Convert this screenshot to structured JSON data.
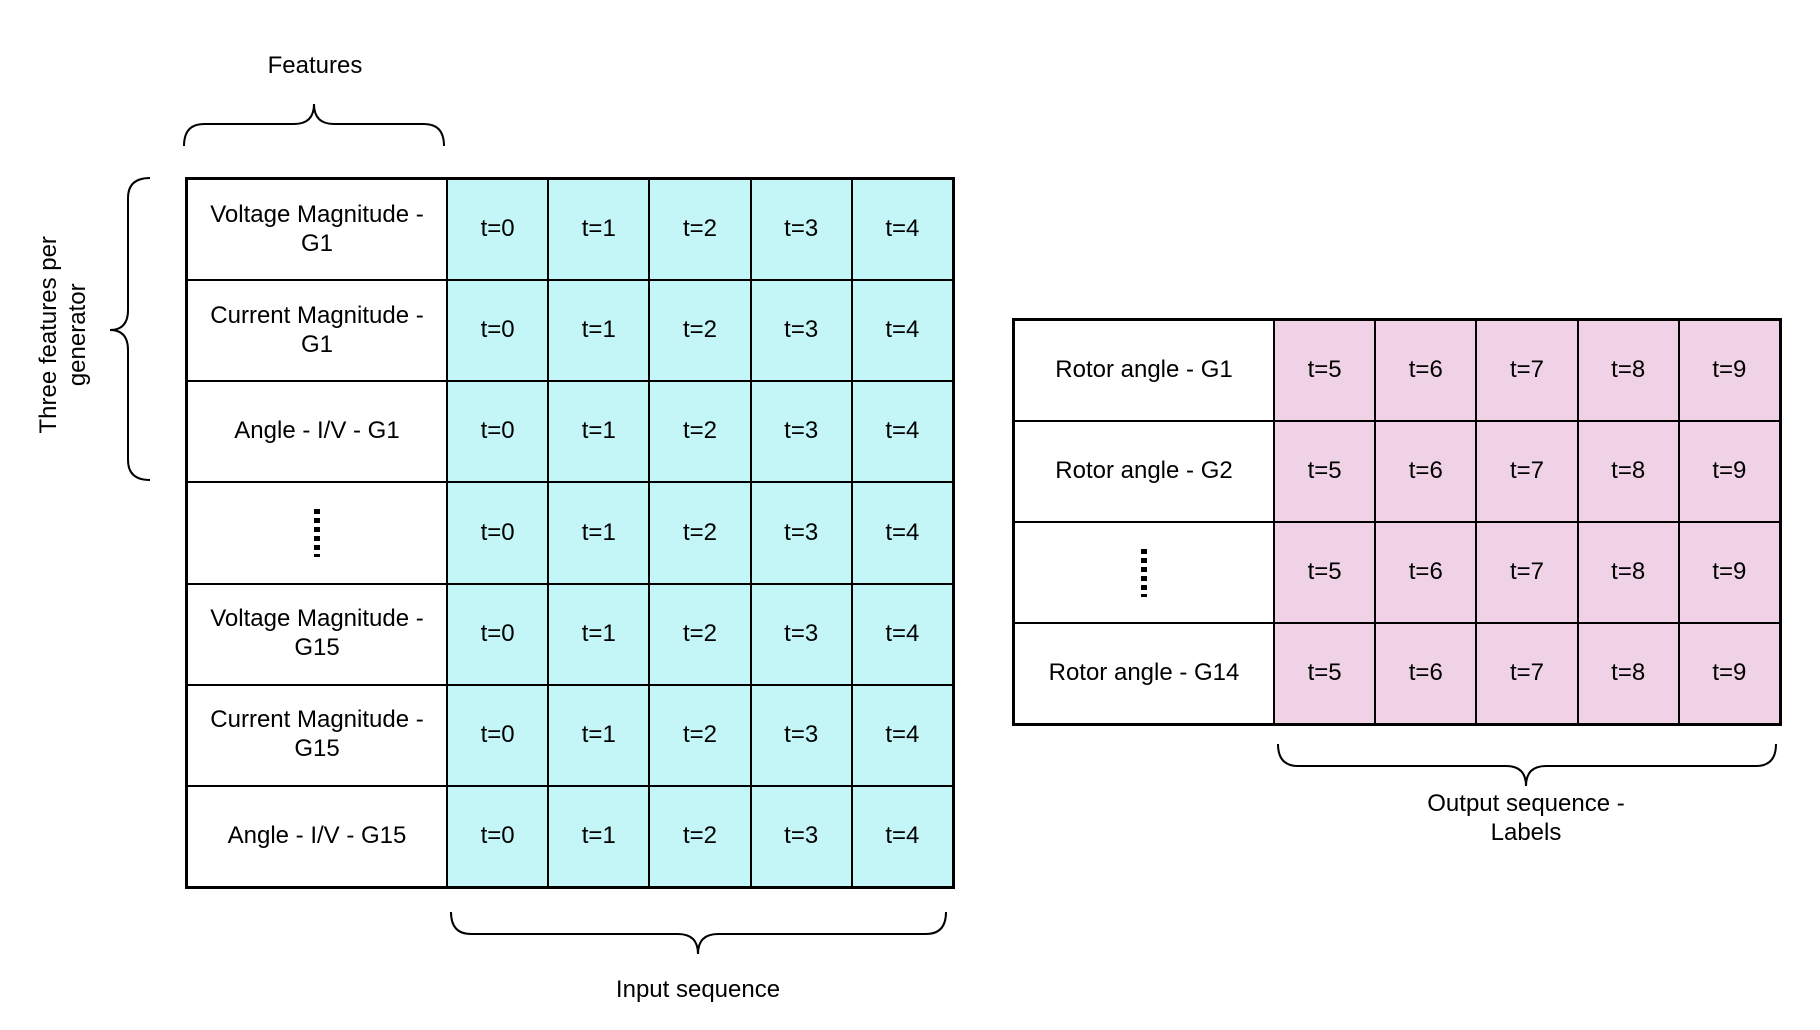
{
  "labels": {
    "features": "Features",
    "three_features": "Three features per generator",
    "input_sequence": "Input sequence",
    "output_sequence": "Output sequence - Labels"
  },
  "input_table": {
    "rows": [
      {
        "feature": "Voltage Magnitude - G1",
        "times": [
          "t=0",
          "t=1",
          "t=2",
          "t=3",
          "t=4"
        ]
      },
      {
        "feature": "Current Magnitude - G1",
        "times": [
          "t=0",
          "t=1",
          "t=2",
          "t=3",
          "t=4"
        ]
      },
      {
        "feature": "Angle - I/V - G1",
        "times": [
          "t=0",
          "t=1",
          "t=2",
          "t=3",
          "t=4"
        ]
      },
      {
        "feature": "",
        "ellipsis": true,
        "times": [
          "t=0",
          "t=1",
          "t=2",
          "t=3",
          "t=4"
        ]
      },
      {
        "feature": "Voltage Magnitude - G15",
        "times": [
          "t=0",
          "t=1",
          "t=2",
          "t=3",
          "t=4"
        ]
      },
      {
        "feature": "Current Magnitude - G15",
        "times": [
          "t=0",
          "t=1",
          "t=2",
          "t=3",
          "t=4"
        ]
      },
      {
        "feature": "Angle - I/V - G15",
        "times": [
          "t=0",
          "t=1",
          "t=2",
          "t=3",
          "t=4"
        ]
      }
    ]
  },
  "output_table": {
    "rows": [
      {
        "feature": "Rotor angle - G1",
        "times": [
          "t=5",
          "t=6",
          "t=7",
          "t=8",
          "t=9"
        ]
      },
      {
        "feature": "Rotor angle - G2",
        "times": [
          "t=5",
          "t=6",
          "t=7",
          "t=8",
          "t=9"
        ]
      },
      {
        "feature": "",
        "ellipsis": true,
        "times": [
          "t=5",
          "t=6",
          "t=7",
          "t=8",
          "t=9"
        ]
      },
      {
        "feature": "Rotor angle - G14",
        "times": [
          "t=5",
          "t=6",
          "t=7",
          "t=8",
          "t=9"
        ]
      }
    ]
  },
  "colors": {
    "input_cell": "#c4f6f8",
    "output_cell": "#f0d2e6",
    "feature_cell": "#ffffff"
  }
}
